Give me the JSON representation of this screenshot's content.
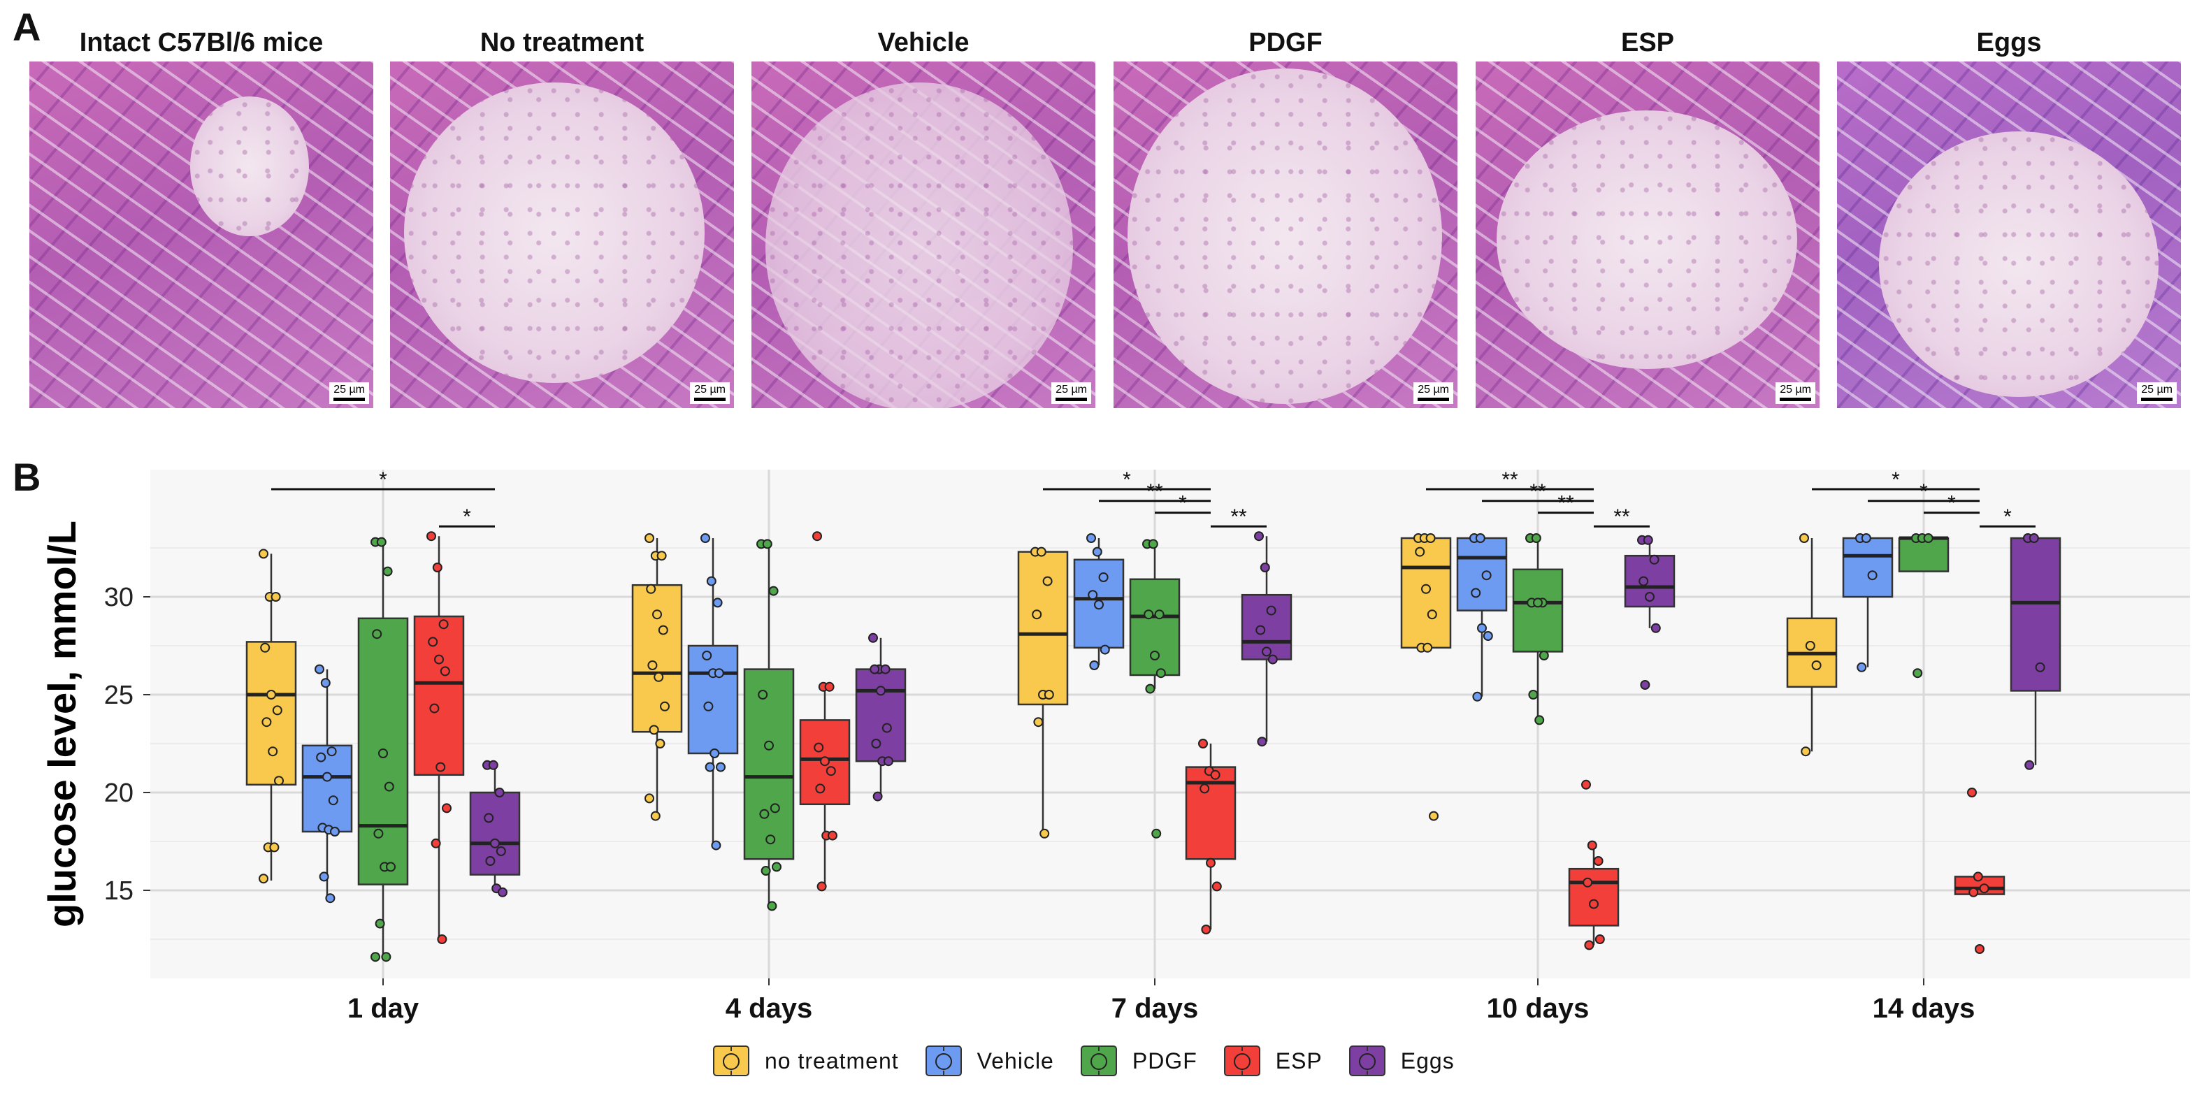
{
  "panel_a": {
    "letter": "A",
    "images": [
      {
        "title": "Intact C57Bl/6 mice",
        "scale": "25 µm"
      },
      {
        "title": "No treatment",
        "scale": "25 µm"
      },
      {
        "title": "Vehicle",
        "scale": "25 µm"
      },
      {
        "title": "PDGF",
        "scale": "25 µm"
      },
      {
        "title": "ESP",
        "scale": "25 µm"
      },
      {
        "title": "Eggs",
        "scale": "25 µm"
      }
    ]
  },
  "panel_b": {
    "letter": "B"
  },
  "legend": [
    {
      "label": "no  treatment",
      "color": "#F8C94C"
    },
    {
      "label": "Vehicle",
      "color": "#6E9BF2"
    },
    {
      "label": "PDGF",
      "color": "#4FA64B"
    },
    {
      "label": "ESP",
      "color": "#F33F3A"
    },
    {
      "label": "Eggs",
      "color": "#7E3FA3"
    }
  ],
  "chart_data": {
    "type": "box",
    "title": "",
    "xlabel": "",
    "ylabel": "glucose level, mmol/L",
    "ylim": [
      10.5,
      36.5
    ],
    "yticks": [
      15,
      20,
      25,
      30
    ],
    "categories": [
      "1 day",
      "4 days",
      "7 days",
      "10 days",
      "14 days"
    ],
    "series": [
      {
        "name": "no treatment",
        "color": "#F8C94C",
        "boxes": [
          {
            "q1": 20.4,
            "median": 25.0,
            "q3": 27.7,
            "whisker_low": 15.5,
            "whisker_high": 32.2,
            "outliers": [],
            "points": [
              32.2,
              30.0,
              30.0,
              27.4,
              25.0,
              24.2,
              23.6,
              22.1,
              20.6,
              17.2,
              17.2,
              15.6
            ]
          },
          {
            "q1": 23.1,
            "median": 26.1,
            "q3": 30.6,
            "whisker_low": 18.8,
            "whisker_high": 33.0,
            "outliers": [],
            "points": [
              33.0,
              32.1,
              32.1,
              30.4,
              29.1,
              28.3,
              26.5,
              25.9,
              24.4,
              23.2,
              22.5,
              19.7,
              18.8
            ]
          },
          {
            "q1": 24.5,
            "median": 28.1,
            "q3": 32.3,
            "whisker_low": 17.9,
            "whisker_high": 32.3,
            "outliers": [],
            "points": [
              32.3,
              32.3,
              30.8,
              29.1,
              25.0,
              25.0,
              23.6,
              17.9
            ]
          },
          {
            "q1": 27.4,
            "median": 31.5,
            "q3": 33.0,
            "whisker_low": 27.4,
            "whisker_high": 33.0,
            "outliers": [
              18.8
            ],
            "points": [
              33.0,
              33.0,
              33.0,
              32.3,
              30.4,
              29.1,
              27.4,
              27.4,
              18.8
            ]
          },
          {
            "q1": 25.4,
            "median": 27.1,
            "q3": 28.9,
            "whisker_low": 22.1,
            "whisker_high": 33.0,
            "outliers": [],
            "points": [
              33.0,
              27.5,
              26.5,
              22.1
            ]
          }
        ]
      },
      {
        "name": "Vehicle",
        "color": "#6E9BF2",
        "boxes": [
          {
            "q1": 18.0,
            "median": 20.8,
            "q3": 22.4,
            "whisker_low": 14.6,
            "whisker_high": 26.3,
            "outliers": [],
            "points": [
              26.3,
              25.6,
              22.1,
              21.8,
              20.8,
              19.6,
              18.2,
              18.1,
              18.0,
              15.7,
              14.6
            ]
          },
          {
            "q1": 22.0,
            "median": 26.1,
            "q3": 27.5,
            "whisker_low": 17.3,
            "whisker_high": 33.0,
            "outliers": [],
            "points": [
              33.0,
              30.8,
              29.7,
              27.0,
              26.1,
              26.1,
              24.4,
              22.0,
              21.3,
              21.3,
              17.3
            ]
          },
          {
            "q1": 27.4,
            "median": 29.9,
            "q3": 31.9,
            "whisker_low": 26.5,
            "whisker_high": 33.0,
            "outliers": [],
            "points": [
              33.0,
              32.3,
              31.0,
              30.1,
              29.6,
              27.3,
              26.5
            ]
          },
          {
            "q1": 29.3,
            "median": 32.0,
            "q3": 33.0,
            "whisker_low": 24.9,
            "whisker_high": 33.0,
            "outliers": [],
            "points": [
              33.0,
              33.0,
              31.1,
              30.2,
              28.4,
              28.0,
              24.9
            ]
          },
          {
            "q1": 30.0,
            "median": 32.1,
            "q3": 33.0,
            "whisker_low": 26.4,
            "whisker_high": 33.0,
            "outliers": [],
            "points": [
              33.0,
              33.0,
              31.1,
              26.4
            ]
          }
        ]
      },
      {
        "name": "PDGF",
        "color": "#4FA64B",
        "boxes": [
          {
            "q1": 15.3,
            "median": 18.3,
            "q3": 28.9,
            "whisker_low": 11.6,
            "whisker_high": 32.8,
            "outliers": [],
            "points": [
              32.8,
              32.8,
              31.3,
              28.1,
              22.0,
              20.3,
              17.9,
              16.2,
              16.2,
              13.3,
              11.6,
              11.6
            ]
          },
          {
            "q1": 16.6,
            "median": 20.8,
            "q3": 26.3,
            "whisker_low": 14.2,
            "whisker_high": 32.7,
            "outliers": [],
            "points": [
              32.7,
              32.7,
              30.3,
              25.0,
              22.4,
              19.2,
              18.9,
              17.6,
              16.2,
              16.0,
              14.2
            ]
          },
          {
            "q1": 26.0,
            "median": 29.0,
            "q3": 30.9,
            "whisker_low": 25.3,
            "whisker_high": 32.7,
            "outliers": [
              17.9
            ],
            "points": [
              32.7,
              32.7,
              29.1,
              29.1,
              27.0,
              26.1,
              25.3,
              17.9
            ]
          },
          {
            "q1": 27.2,
            "median": 29.7,
            "q3": 31.4,
            "whisker_low": 23.7,
            "whisker_high": 33.0,
            "outliers": [],
            "points": [
              33.0,
              33.0,
              29.7,
              29.7,
              29.7,
              27.0,
              25.0,
              23.7
            ]
          },
          {
            "q1": 31.3,
            "median": 33.0,
            "q3": 33.0,
            "whisker_low": 31.3,
            "whisker_high": 33.0,
            "outliers": [
              26.1
            ],
            "points": [
              33.0,
              33.0,
              33.0,
              26.1
            ]
          }
        ]
      },
      {
        "name": "ESP",
        "color": "#F33F3A",
        "boxes": [
          {
            "q1": 20.9,
            "median": 25.6,
            "q3": 29.0,
            "whisker_low": 12.5,
            "whisker_high": 33.1,
            "outliers": [],
            "points": [
              33.1,
              31.5,
              28.6,
              27.7,
              26.8,
              26.2,
              24.3,
              21.3,
              19.2,
              17.4,
              12.5
            ]
          },
          {
            "q1": 19.4,
            "median": 21.7,
            "q3": 23.7,
            "whisker_low": 15.2,
            "whisker_high": 25.4,
            "outliers": [
              33.1
            ],
            "points": [
              33.1,
              25.4,
              25.4,
              22.3,
              21.6,
              21.1,
              20.2,
              17.8,
              17.8,
              15.2
            ]
          },
          {
            "q1": 16.6,
            "median": 20.5,
            "q3": 21.3,
            "whisker_low": 13.0,
            "whisker_high": 22.5,
            "outliers": [],
            "points": [
              22.5,
              21.1,
              20.9,
              20.2,
              16.4,
              15.2,
              13.0
            ]
          },
          {
            "q1": 13.2,
            "median": 15.4,
            "q3": 16.1,
            "whisker_low": 12.2,
            "whisker_high": 17.3,
            "outliers": [
              20.4
            ],
            "points": [
              20.4,
              17.3,
              16.5,
              15.4,
              14.3,
              12.5,
              12.2
            ]
          },
          {
            "q1": 14.8,
            "median": 15.1,
            "q3": 15.7,
            "whisker_low": 14.8,
            "whisker_high": 15.7,
            "outliers": [
              20.0,
              12.0
            ],
            "points": [
              20.0,
              15.7,
              15.1,
              14.9,
              12.0
            ]
          }
        ]
      },
      {
        "name": "Eggs",
        "color": "#7E3FA3",
        "boxes": [
          {
            "q1": 15.8,
            "median": 17.4,
            "q3": 20.0,
            "whisker_low": 14.9,
            "whisker_high": 21.4,
            "outliers": [],
            "points": [
              21.4,
              21.4,
              20.0,
              18.7,
              17.4,
              17.0,
              16.5,
              15.1,
              14.9
            ]
          },
          {
            "q1": 21.6,
            "median": 25.2,
            "q3": 26.3,
            "whisker_low": 19.8,
            "whisker_high": 27.9,
            "outliers": [],
            "points": [
              27.9,
              26.3,
              26.3,
              26.3,
              25.2,
              23.3,
              22.5,
              21.6,
              21.6,
              19.8
            ]
          },
          {
            "q1": 26.8,
            "median": 27.7,
            "q3": 30.1,
            "whisker_low": 22.6,
            "whisker_high": 33.1,
            "outliers": [],
            "points": [
              33.1,
              31.5,
              29.3,
              28.3,
              27.2,
              26.8,
              22.6
            ]
          },
          {
            "q1": 29.5,
            "median": 30.5,
            "q3": 32.1,
            "whisker_low": 28.4,
            "whisker_high": 32.9,
            "outliers": [
              25.5
            ],
            "points": [
              32.9,
              32.9,
              31.9,
              30.8,
              30.0,
              28.4,
              25.5
            ]
          },
          {
            "q1": 25.2,
            "median": 29.7,
            "q3": 33.0,
            "whisker_low": 21.4,
            "whisker_high": 33.0,
            "outliers": [],
            "points": [
              33.0,
              33.0,
              26.4,
              21.4
            ]
          }
        ]
      }
    ],
    "significance": [
      {
        "group": 0,
        "from": 0,
        "to": 4,
        "y": 35.5,
        "label": "*"
      },
      {
        "group": 0,
        "from": 3,
        "to": 4,
        "y": 33.6,
        "label": "*"
      },
      {
        "group": 2,
        "from": 0,
        "to": 3,
        "y": 35.5,
        "label": "*"
      },
      {
        "group": 2,
        "from": 1,
        "to": 3,
        "y": 34.9,
        "label": "**"
      },
      {
        "group": 2,
        "from": 2,
        "to": 3,
        "y": 34.3,
        "label": "*"
      },
      {
        "group": 2,
        "from": 3,
        "to": 4,
        "y": 33.6,
        "label": "**"
      },
      {
        "group": 3,
        "from": 0,
        "to": 3,
        "y": 35.5,
        "label": "**"
      },
      {
        "group": 3,
        "from": 1,
        "to": 3,
        "y": 34.9,
        "label": "**"
      },
      {
        "group": 3,
        "from": 2,
        "to": 3,
        "y": 34.3,
        "label": "**"
      },
      {
        "group": 3,
        "from": 3,
        "to": 4,
        "y": 33.6,
        "label": "**"
      },
      {
        "group": 4,
        "from": 0,
        "to": 3,
        "y": 35.5,
        "label": "*"
      },
      {
        "group": 4,
        "from": 1,
        "to": 3,
        "y": 34.9,
        "label": "*"
      },
      {
        "group": 4,
        "from": 2,
        "to": 3,
        "y": 34.3,
        "label": "*"
      },
      {
        "group": 4,
        "from": 3,
        "to": 4,
        "y": 33.6,
        "label": "*"
      }
    ]
  }
}
